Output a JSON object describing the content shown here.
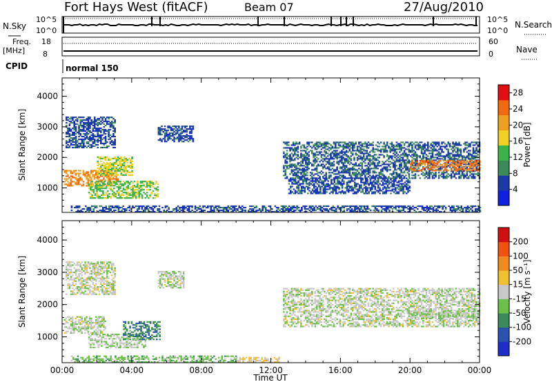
{
  "header": {
    "station": "Fort Hays West (fitACF)",
    "beam": "Beam 07",
    "date": "27/Aug/2010"
  },
  "top_panels": {
    "nsky_label": "N.Sky",
    "nsearch_label": "N.Search",
    "nsky_ticks": [
      "10^5",
      "10^0"
    ],
    "nsearch_ticks": [
      "10^5",
      "10^0"
    ],
    "freq_label": "Freq.",
    "freq_unit": "[MHz]",
    "freq_ticks": [
      "18",
      "8"
    ],
    "nave_label": "Nave",
    "nave_ticks": [
      "60",
      "0"
    ],
    "cpid_label": "CPID",
    "cpid_value": "normal 150"
  },
  "colors": {
    "power": [
      "#1020e0",
      "#1a3aa8",
      "#3a8a5a",
      "#3bb34a",
      "#f0d020",
      "#f0a020",
      "#f06a10",
      "#e01010"
    ],
    "velocity": [
      "#1d2fc8",
      "#2a52b0",
      "#3b8a5a",
      "#6cc04a",
      "#c8c8c8",
      "#f0c030",
      "#f08a20",
      "#f05010",
      "#d01010"
    ]
  },
  "chart_data": [
    {
      "type": "heatmap",
      "title": "",
      "ylabel": "Slant Range [km]",
      "xlabel": "",
      "x_ticks": [
        "00:00",
        "04:00",
        "08:00",
        "12:00",
        "16:00",
        "20:00",
        "00:00"
      ],
      "xlim_hours": [
        0,
        24
      ],
      "ylim": [
        200,
        4600
      ],
      "y_ticks": [
        1000,
        2000,
        3000,
        4000
      ],
      "colorbar": {
        "label": "Power [dB]",
        "ticks": [
          4,
          8,
          12,
          16,
          20,
          24,
          28
        ],
        "range": [
          0,
          30
        ]
      },
      "echo_regions": [
        {
          "t": [
            0.1,
            3.2
          ],
          "r": [
            1050,
            1550
          ],
          "value": 22
        },
        {
          "t": [
            1.5,
            5.5
          ],
          "r": [
            650,
            1200
          ],
          "value": 14
        },
        {
          "t": [
            2.0,
            4.0
          ],
          "r": [
            1400,
            2000
          ],
          "value": 16
        },
        {
          "t": [
            0.2,
            3.0
          ],
          "r": [
            2300,
            3300
          ],
          "value": 6
        },
        {
          "t": [
            5.5,
            7.5
          ],
          "r": [
            2500,
            3000
          ],
          "value": 6
        },
        {
          "t": [
            0.5,
            24.0
          ],
          "r": [
            200,
            400
          ],
          "value": 6
        },
        {
          "t": [
            12.7,
            24.0
          ],
          "r": [
            1300,
            2500
          ],
          "value": 7
        },
        {
          "t": [
            20.0,
            24.0
          ],
          "r": [
            1550,
            1900
          ],
          "value": 24
        },
        {
          "t": [
            13.0,
            20.0
          ],
          "r": [
            800,
            1300
          ],
          "value": 6
        }
      ]
    },
    {
      "type": "heatmap",
      "title": "",
      "ylabel": "Slant Range [km]",
      "xlabel": "Time UT",
      "x_ticks": [
        "00:00",
        "04:00",
        "08:00",
        "12:00",
        "16:00",
        "20:00",
        "00:00"
      ],
      "xlim_hours": [
        0,
        24
      ],
      "ylim": [
        200,
        4600
      ],
      "y_ticks": [
        1000,
        2000,
        3000,
        4000
      ],
      "colorbar": {
        "label": "Velocity [m s⁻¹]",
        "ticks": [
          200,
          100,
          50,
          15,
          -15,
          -50,
          -100,
          -200
        ],
        "range": [
          -250,
          250
        ]
      },
      "echo_regions": [
        {
          "t": [
            0.1,
            2.5
          ],
          "r": [
            1100,
            1600
          ],
          "value": -10
        },
        {
          "t": [
            1.5,
            4.8
          ],
          "r": [
            650,
            1100
          ],
          "value": -20
        },
        {
          "t": [
            3.5,
            5.6
          ],
          "r": [
            900,
            1450
          ],
          "value": -120
        },
        {
          "t": [
            5.5,
            7.0
          ],
          "r": [
            2500,
            3000
          ],
          "value": -10
        },
        {
          "t": [
            0.5,
            10.0
          ],
          "r": [
            200,
            400
          ],
          "value": -60
        },
        {
          "t": [
            10.0,
            12.5
          ],
          "r": [
            200,
            350
          ],
          "value": 40
        },
        {
          "t": [
            12.7,
            24.0
          ],
          "r": [
            1300,
            2500
          ],
          "value": -8
        },
        {
          "t": [
            20.0,
            24.0
          ],
          "r": [
            1550,
            1800
          ],
          "value": -25
        },
        {
          "t": [
            0.2,
            3.0
          ],
          "r": [
            2300,
            3300
          ],
          "value": -5
        }
      ]
    }
  ]
}
